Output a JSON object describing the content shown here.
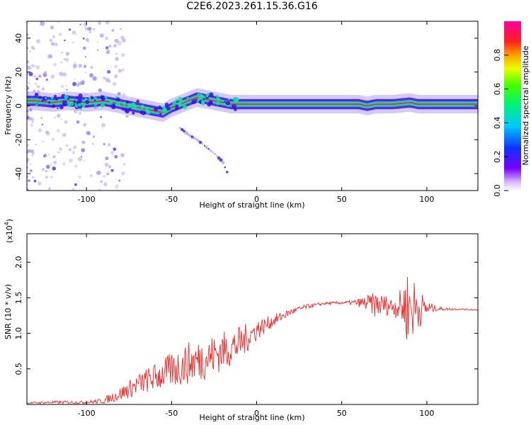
{
  "title": "C2E6.2023.261.15.36.G16",
  "colors": {
    "snr_line": "#ee2a2a",
    "spectrum_core": "#ff1a40",
    "spectrum_mid": "#18e0a0",
    "spectrum_edge": "#3a10e8",
    "spectrum_faint": "#b59cf0"
  },
  "chart_data": [
    {
      "type": "heatmap",
      "xlabel": "Height of straight line (km)",
      "ylabel": "Frequency (Hz)",
      "xlim": [
        -135,
        130
      ],
      "ylim": [
        -50,
        50
      ],
      "xticks": [
        -100,
        -50,
        0,
        50,
        100
      ],
      "yticks": [
        -40,
        -20,
        0,
        20,
        40
      ],
      "colorbar": {
        "label": "Normalized spectral amplitude",
        "range": [
          0,
          1
        ],
        "ticks": [
          "0.0",
          "0.2",
          "0.4",
          "0.6",
          "0.8"
        ],
        "colormap": "rainbow (white-violet-blue-cyan-green-yellow-red-magenta)"
      },
      "ridge": {
        "x": [
          -130,
          -120,
          -110,
          -100,
          -90,
          -80,
          -75,
          -70,
          -65,
          -60,
          -55,
          -50,
          -45,
          -40,
          -35,
          -30,
          -25,
          -20,
          -15,
          -10,
          -5,
          0,
          10,
          20,
          30,
          40,
          50,
          60,
          65,
          70,
          80,
          90,
          95,
          100,
          110,
          120,
          130
        ],
        "freq": [
          3,
          2,
          3,
          2,
          3,
          1,
          0,
          -1,
          -2,
          -3,
          -4,
          -1,
          1,
          3,
          5,
          4,
          3,
          2,
          1,
          1,
          1,
          1,
          1,
          1,
          1,
          1,
          1,
          1,
          0,
          1,
          1,
          2,
          1,
          1,
          1,
          1,
          1
        ]
      },
      "branch": {
        "x": [
          -45,
          -40,
          -35,
          -30,
          -25,
          -20,
          -17
        ],
        "freq": [
          -13,
          -17,
          -20,
          -24,
          -28,
          -33,
          -40
        ]
      }
    },
    {
      "type": "line",
      "xlabel": "Height of straight line (km)",
      "ylabel": "SNR (10 * v/v)",
      "multiplier": "(x10^4)",
      "xlim": [
        -135,
        130
      ],
      "ylim": [
        0,
        2.4
      ],
      "xticks": [
        -100,
        -50,
        0,
        50,
        100
      ],
      "yticks": [
        0.5,
        1.0,
        1.5,
        2.0
      ],
      "series": [
        {
          "envelope_x": [
            -135,
            -120,
            -100,
            -90,
            -80,
            -70,
            -60,
            -50,
            -40,
            -30,
            -20,
            -10,
            -5,
            0,
            10,
            20,
            30,
            40,
            50,
            55,
            60,
            65,
            70,
            75,
            80,
            85,
            88,
            90,
            92,
            95,
            100,
            105,
            110,
            120,
            130
          ],
          "values": [
            0.02,
            0.03,
            0.03,
            0.05,
            0.15,
            0.28,
            0.38,
            0.48,
            0.58,
            0.65,
            0.75,
            0.85,
            0.95,
            1.05,
            1.18,
            1.3,
            1.38,
            1.42,
            1.43,
            1.43,
            1.43,
            1.42,
            1.4,
            1.4,
            1.38,
            1.38,
            1.38,
            1.38,
            1.36,
            1.35,
            1.35,
            1.35,
            1.34,
            1.34,
            1.33
          ],
          "noise": [
            0.01,
            0.02,
            0.02,
            0.04,
            0.1,
            0.15,
            0.2,
            0.25,
            0.3,
            0.3,
            0.28,
            0.25,
            0.2,
            0.15,
            0.08,
            0.05,
            0.03,
            0.02,
            0.02,
            0.03,
            0.06,
            0.12,
            0.18,
            0.15,
            0.12,
            0.25,
            0.5,
            0.55,
            0.45,
            0.3,
            0.12,
            0.04,
            0.02,
            0.01,
            0.01
          ]
        }
      ]
    }
  ]
}
